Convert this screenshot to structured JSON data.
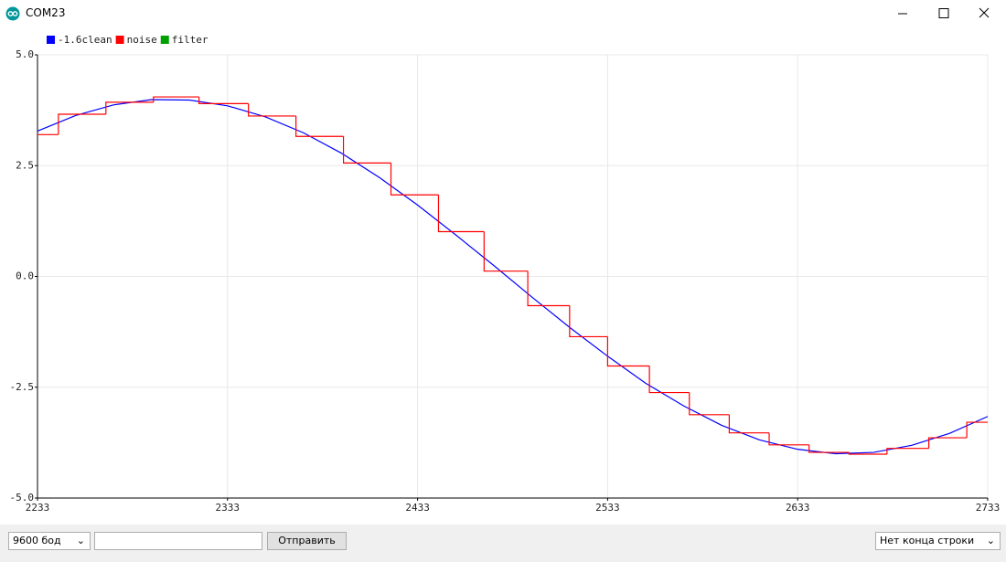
{
  "window": {
    "title": "COM23"
  },
  "chart_data": {
    "type": "line",
    "series": [
      {
        "name": "-1.6clean",
        "color": "#0000ff",
        "x": [
          2233,
          2253,
          2273,
          2293,
          2313,
          2333,
          2353,
          2373,
          2393,
          2413,
          2433,
          2453,
          2473,
          2493,
          2513,
          2533,
          2553,
          2573,
          2593,
          2613,
          2633,
          2653,
          2673,
          2693,
          2713,
          2733
        ],
        "values": [
          3.28,
          3.63,
          3.87,
          3.99,
          3.98,
          3.85,
          3.6,
          3.24,
          2.78,
          2.23,
          1.61,
          0.94,
          0.25,
          -0.46,
          -1.15,
          -1.8,
          -2.41,
          -2.92,
          -3.36,
          -3.69,
          -3.9,
          -4.0,
          -3.97,
          -3.81,
          -3.54,
          -3.16
        ]
      },
      {
        "name": "noise",
        "color": "#ff0000",
        "step": true,
        "x": [
          2233,
          2244,
          2269,
          2294,
          2318,
          2344,
          2369,
          2394,
          2419,
          2444,
          2468,
          2491,
          2513,
          2533,
          2555,
          2576,
          2597,
          2618,
          2639,
          2660,
          2680,
          2702,
          2722
        ],
        "values": [
          3.2,
          3.66,
          3.93,
          4.05,
          3.9,
          3.62,
          3.16,
          2.56,
          1.84,
          1.01,
          0.12,
          -0.66,
          -1.36,
          -2.02,
          -2.62,
          -3.12,
          -3.53,
          -3.8,
          -3.97,
          -4.01,
          -3.88,
          -3.64,
          -3.29
        ]
      },
      {
        "name": "filter",
        "color": "#00a000"
      }
    ],
    "xlim": [
      2233,
      2733
    ],
    "xticks": [
      2233,
      2333,
      2433,
      2533,
      2633,
      2733
    ],
    "ylim": [
      -5,
      5
    ],
    "yticks": [
      {
        "value": 5,
        "label": "5.0"
      },
      {
        "value": 2.5,
        "label": "2.5"
      },
      {
        "value": 0,
        "label": "0.0"
      },
      {
        "value": -2.5,
        "label": "-2.5"
      },
      {
        "value": -5,
        "label": "-5.0"
      }
    ],
    "grid": true
  },
  "controls": {
    "baud": "9600 бод",
    "send": "Отправить",
    "line_ending": "Нет конца строки"
  }
}
